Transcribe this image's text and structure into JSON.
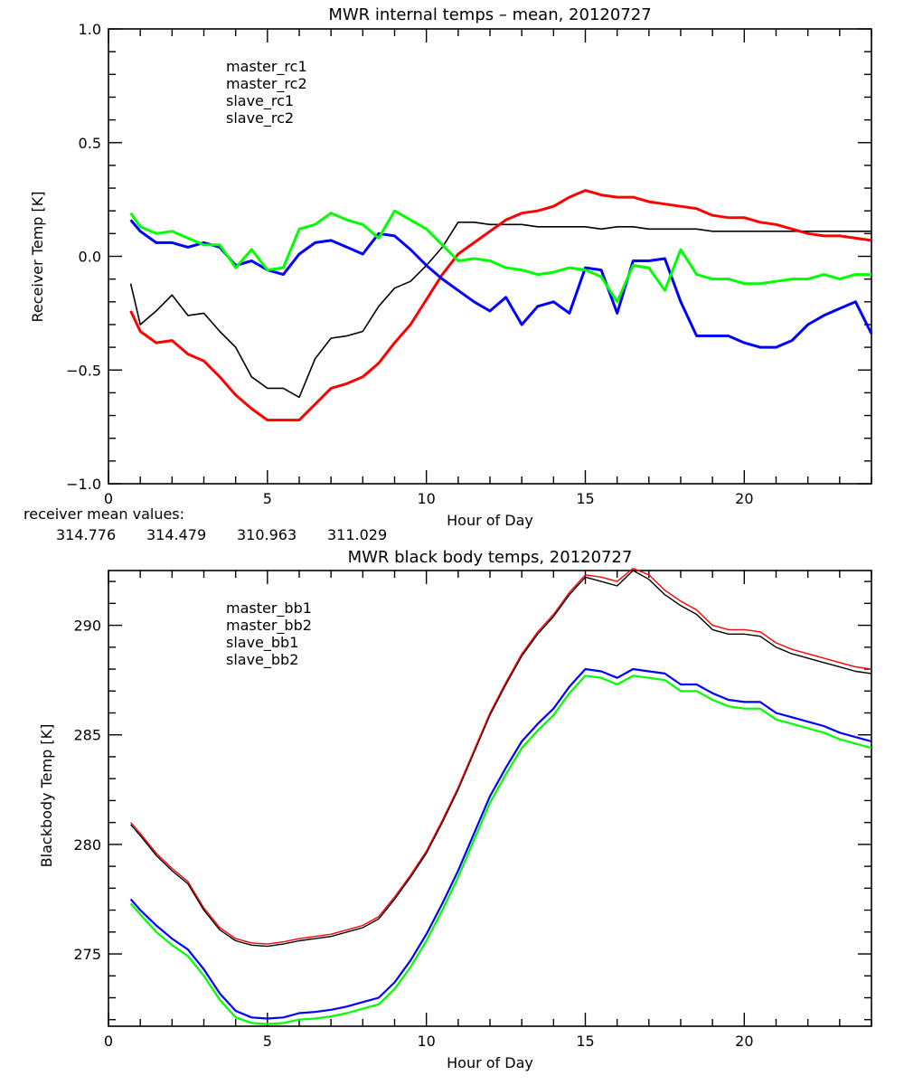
{
  "chart_data": [
    {
      "type": "line",
      "title": "MWR internal temps – mean, 20120727",
      "xlabel": "Hour of Day",
      "ylabel": "Receiver Temp [K]",
      "xlim": [
        0,
        24
      ],
      "ylim": [
        -1.0,
        1.0
      ],
      "xticks": [
        0,
        5,
        10,
        15,
        20
      ],
      "xtick_labels": [
        "0",
        "5",
        "10",
        "15",
        "20"
      ],
      "yticks": [
        -1.0,
        -0.5,
        0.0,
        0.5,
        1.0
      ],
      "ytick_labels": [
        "−1.0",
        "−0.5",
        "0.0",
        "0.5",
        "1.0"
      ],
      "grid": false,
      "legend_position": "top-left (inside)",
      "x": [
        0.7,
        1.0,
        1.5,
        2.0,
        2.5,
        3.0,
        3.5,
        4.0,
        4.5,
        5.0,
        5.5,
        6.0,
        6.5,
        7.0,
        7.5,
        8.0,
        8.5,
        9.0,
        9.5,
        10.0,
        10.5,
        11.0,
        11.5,
        12.0,
        12.5,
        13.0,
        13.5,
        14.0,
        14.5,
        15.0,
        15.5,
        16.0,
        16.5,
        17.0,
        17.5,
        18.0,
        18.5,
        19.0,
        19.5,
        20.0,
        20.5,
        21.0,
        21.5,
        22.0,
        22.5,
        23.0,
        23.5,
        24.0
      ],
      "series": [
        {
          "name": "master_rc1",
          "color": "#000000",
          "values": [
            -0.12,
            -0.3,
            -0.24,
            -0.17,
            -0.26,
            -0.25,
            -0.33,
            -0.4,
            -0.53,
            -0.58,
            -0.58,
            -0.62,
            -0.45,
            -0.36,
            -0.35,
            -0.33,
            -0.22,
            -0.14,
            -0.11,
            -0.04,
            0.04,
            0.15,
            0.15,
            0.14,
            0.14,
            0.14,
            0.13,
            0.13,
            0.13,
            0.13,
            0.12,
            0.13,
            0.13,
            0.12,
            0.12,
            0.12,
            0.12,
            0.11,
            0.11,
            0.11,
            0.11,
            0.11,
            0.11,
            0.11,
            0.11,
            0.11,
            0.11,
            0.11
          ]
        },
        {
          "name": "master_rc2",
          "color": "#ff0000",
          "values": [
            -0.24,
            -0.33,
            -0.38,
            -0.37,
            -0.43,
            -0.46,
            -0.53,
            -0.61,
            -0.67,
            -0.72,
            -0.72,
            -0.72,
            -0.65,
            -0.58,
            -0.56,
            -0.53,
            -0.47,
            -0.38,
            -0.3,
            -0.19,
            -0.08,
            0.01,
            0.06,
            0.11,
            0.16,
            0.19,
            0.2,
            0.22,
            0.26,
            0.29,
            0.27,
            0.26,
            0.26,
            0.24,
            0.23,
            0.22,
            0.21,
            0.18,
            0.17,
            0.17,
            0.15,
            0.14,
            0.12,
            0.1,
            0.09,
            0.09,
            0.08,
            0.07
          ]
        },
        {
          "name": "slave_rc1",
          "color": "#0000ff",
          "values": [
            0.16,
            0.11,
            0.06,
            0.06,
            0.04,
            0.06,
            0.04,
            -0.04,
            -0.02,
            -0.06,
            -0.08,
            0.01,
            0.06,
            0.07,
            0.04,
            0.01,
            0.1,
            0.09,
            0.03,
            -0.04,
            -0.1,
            -0.15,
            -0.2,
            -0.24,
            -0.18,
            -0.3,
            -0.22,
            -0.2,
            -0.25,
            -0.05,
            -0.06,
            -0.25,
            -0.02,
            -0.02,
            -0.01,
            -0.2,
            -0.35,
            -0.35,
            -0.35,
            -0.38,
            -0.4,
            -0.4,
            -0.37,
            -0.3,
            -0.26,
            -0.23,
            -0.2,
            -0.34
          ]
        },
        {
          "name": "slave_rc2",
          "color": "#00ff00",
          "values": [
            0.19,
            0.13,
            0.1,
            0.11,
            0.08,
            0.05,
            0.05,
            -0.05,
            0.03,
            -0.06,
            -0.05,
            0.12,
            0.14,
            0.19,
            0.16,
            0.14,
            0.08,
            0.2,
            0.16,
            0.12,
            0.05,
            -0.02,
            -0.01,
            -0.02,
            -0.05,
            -0.06,
            -0.08,
            -0.07,
            -0.05,
            -0.06,
            -0.09,
            -0.2,
            -0.04,
            -0.05,
            -0.15,
            0.03,
            -0.08,
            -0.1,
            -0.1,
            -0.12,
            -0.12,
            -0.11,
            -0.1,
            -0.1,
            -0.08,
            -0.1,
            -0.08,
            -0.08
          ]
        }
      ],
      "annotation": {
        "label": "receiver mean values:",
        "values": [
          {
            "text": "314.776",
            "color": "#000000"
          },
          {
            "text": "314.479",
            "color": "#ff0000"
          },
          {
            "text": "310.963",
            "color": "#0000ff"
          },
          {
            "text": "311.029",
            "color": "#00ff00"
          }
        ]
      }
    },
    {
      "type": "line",
      "title": "MWR black body temps, 20120727",
      "xlabel": "Hour of Day",
      "ylabel": "Blackbody Temp [K]",
      "xlim": [
        0,
        24
      ],
      "ylim": [
        271.7,
        292.5
      ],
      "xticks": [
        0,
        5,
        10,
        15,
        20
      ],
      "xtick_labels": [
        "0",
        "5",
        "10",
        "15",
        "20"
      ],
      "yticks": [
        275,
        280,
        285,
        290
      ],
      "ytick_labels": [
        "275",
        "280",
        "285",
        "290"
      ],
      "grid": false,
      "legend_position": "top-left (inside)",
      "x": [
        0.7,
        1.0,
        1.5,
        2.0,
        2.5,
        3.0,
        3.5,
        4.0,
        4.5,
        5.0,
        5.5,
        6.0,
        6.5,
        7.0,
        7.5,
        8.0,
        8.5,
        9.0,
        9.5,
        10.0,
        10.5,
        11.0,
        11.5,
        12.0,
        12.5,
        13.0,
        13.5,
        14.0,
        14.5,
        15.0,
        15.5,
        16.0,
        16.5,
        17.0,
        17.5,
        18.0,
        18.5,
        19.0,
        19.5,
        20.0,
        20.5,
        21.0,
        21.5,
        22.0,
        22.5,
        23.0,
        23.5,
        24.0
      ],
      "series": [
        {
          "name": "master_bb1",
          "color": "#000000",
          "values": [
            280.9,
            280.4,
            279.5,
            278.8,
            278.2,
            277.0,
            276.1,
            275.6,
            275.4,
            275.35,
            275.45,
            275.6,
            275.7,
            275.8,
            276.0,
            276.2,
            276.6,
            277.5,
            278.5,
            279.6,
            281.0,
            282.5,
            284.2,
            285.9,
            287.3,
            288.6,
            289.6,
            290.4,
            291.4,
            292.2,
            292.0,
            291.8,
            292.5,
            292.1,
            291.4,
            290.9,
            290.5,
            289.8,
            289.6,
            289.6,
            289.5,
            289.0,
            288.7,
            288.5,
            288.3,
            288.1,
            287.9,
            287.8
          ]
        },
        {
          "name": "master_bb2",
          "color": "#ff0000",
          "values": [
            281.0,
            280.5,
            279.6,
            278.9,
            278.3,
            277.1,
            276.2,
            275.7,
            275.5,
            275.45,
            275.55,
            275.7,
            275.8,
            275.9,
            276.1,
            276.3,
            276.7,
            277.6,
            278.6,
            279.7,
            281.1,
            282.6,
            284.3,
            286.0,
            287.4,
            288.7,
            289.7,
            290.5,
            291.5,
            292.3,
            292.2,
            292.0,
            292.6,
            292.3,
            291.6,
            291.1,
            290.7,
            290.0,
            289.8,
            289.8,
            289.7,
            289.2,
            288.9,
            288.7,
            288.5,
            288.3,
            288.1,
            288.0
          ]
        },
        {
          "name": "slave_bb1",
          "color": "#0000ff",
          "values": [
            277.5,
            277.0,
            276.3,
            275.7,
            275.2,
            274.3,
            273.2,
            272.4,
            272.1,
            272.05,
            272.1,
            272.3,
            272.35,
            272.45,
            272.6,
            272.8,
            273.0,
            273.7,
            274.7,
            275.9,
            277.3,
            278.8,
            280.5,
            282.2,
            283.5,
            284.7,
            285.5,
            286.2,
            287.2,
            288.0,
            287.9,
            287.6,
            288.0,
            287.9,
            287.8,
            287.3,
            287.3,
            286.9,
            286.6,
            286.5,
            286.5,
            286.0,
            285.8,
            285.6,
            285.4,
            285.1,
            284.9,
            284.7
          ]
        },
        {
          "name": "slave_bb2",
          "color": "#00ff00",
          "values": [
            277.3,
            276.8,
            276.0,
            275.4,
            274.9,
            274.0,
            272.9,
            272.1,
            271.85,
            271.8,
            271.85,
            272.0,
            272.05,
            272.15,
            272.3,
            272.5,
            272.7,
            273.4,
            274.4,
            275.6,
            277.0,
            278.5,
            280.2,
            281.9,
            283.2,
            284.4,
            285.2,
            285.9,
            286.9,
            287.7,
            287.6,
            287.3,
            287.7,
            287.6,
            287.5,
            287.0,
            287.0,
            286.6,
            286.3,
            286.2,
            286.2,
            285.7,
            285.5,
            285.3,
            285.1,
            284.8,
            284.6,
            284.4
          ]
        }
      ]
    }
  ]
}
